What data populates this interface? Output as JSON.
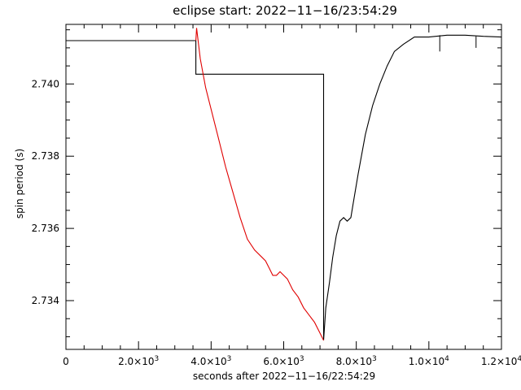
{
  "chart_data": {
    "type": "line",
    "title": "eclipse start: 2022−11−16/23:54:29",
    "xlabel": "seconds after 2022−11−16/22:54:29",
    "ylabel": "spin period (s)",
    "xlim": [
      0,
      12000
    ],
    "ylim": [
      2.73265,
      2.74165
    ],
    "x_ticks": [
      0,
      2000,
      4000,
      6000,
      8000,
      10000,
      12000
    ],
    "x_tick_labels": [
      {
        "mant": "0",
        "exp": ""
      },
      {
        "mant": "2.0×10",
        "exp": "3"
      },
      {
        "mant": "4.0×10",
        "exp": "3"
      },
      {
        "mant": "6.0×10",
        "exp": "3"
      },
      {
        "mant": "8.0×10",
        "exp": "3"
      },
      {
        "mant": "1.0×10",
        "exp": "4"
      },
      {
        "mant": "1.2×10",
        "exp": "4"
      }
    ],
    "y_ticks": [
      2.734,
      2.736,
      2.738,
      2.74
    ],
    "y_tick_labels": [
      "2.734",
      "2.736",
      "2.738",
      "2.740"
    ],
    "colors": {
      "axes": "#000000",
      "measured": "#000000",
      "model": "#e00000"
    },
    "series": [
      {
        "color": "#000000",
        "style": "solid",
        "points": [
          [
            0,
            2.7412
          ],
          [
            800,
            2.7412
          ],
          [
            1500,
            2.7412
          ],
          [
            2500,
            2.7412
          ],
          [
            3580,
            2.7412
          ],
          [
            3580,
            2.74027
          ],
          [
            7100,
            2.74027
          ],
          [
            7100,
            2.7329
          ],
          [
            7160,
            2.7338
          ],
          [
            7260,
            2.7345
          ],
          [
            7350,
            2.7352
          ],
          [
            7450,
            2.7358
          ],
          [
            7550,
            2.7362
          ],
          [
            7650,
            2.7363
          ],
          [
            7750,
            2.7362
          ],
          [
            7850,
            2.7363
          ],
          [
            7900,
            2.7366
          ],
          [
            8050,
            2.7375
          ],
          [
            8250,
            2.7386
          ],
          [
            8450,
            2.7394
          ],
          [
            8650,
            2.74
          ],
          [
            8850,
            2.7405
          ],
          [
            9050,
            2.7409
          ],
          [
            9300,
            2.7411
          ],
          [
            9600,
            2.7413
          ],
          [
            10000,
            2.7413
          ],
          [
            10500,
            2.74135
          ],
          [
            11000,
            2.74135
          ],
          [
            11500,
            2.74132
          ],
          [
            12000,
            2.7413
          ]
        ]
      },
      {
        "color": "#e00000",
        "style": "solid",
        "points": [
          [
            3580,
            2.7412
          ],
          [
            3600,
            2.74155
          ],
          [
            3700,
            2.7407
          ],
          [
            3850,
            2.7399
          ],
          [
            4000,
            2.7393
          ],
          [
            4200,
            2.7385
          ],
          [
            4400,
            2.7377
          ],
          [
            4600,
            2.737
          ],
          [
            4800,
            2.7363
          ],
          [
            5000,
            2.7357
          ],
          [
            5200,
            2.7354
          ],
          [
            5400,
            2.7352
          ],
          [
            5500,
            2.7351
          ],
          [
            5600,
            2.7349
          ],
          [
            5700,
            2.7347
          ],
          [
            5800,
            2.7347
          ],
          [
            5900,
            2.7348
          ],
          [
            6000,
            2.7347
          ],
          [
            6100,
            2.7346
          ],
          [
            6250,
            2.7343
          ],
          [
            6400,
            2.7341
          ],
          [
            6550,
            2.7338
          ],
          [
            6700,
            2.7336
          ],
          [
            6850,
            2.7334
          ],
          [
            7000,
            2.7331
          ],
          [
            7100,
            2.7329
          ]
        ]
      }
    ],
    "spikes": [
      {
        "x": 10300,
        "y_from": 2.74135,
        "y_to": 2.7409
      },
      {
        "x": 11300,
        "y_from": 2.74132,
        "y_to": 2.741
      }
    ]
  }
}
